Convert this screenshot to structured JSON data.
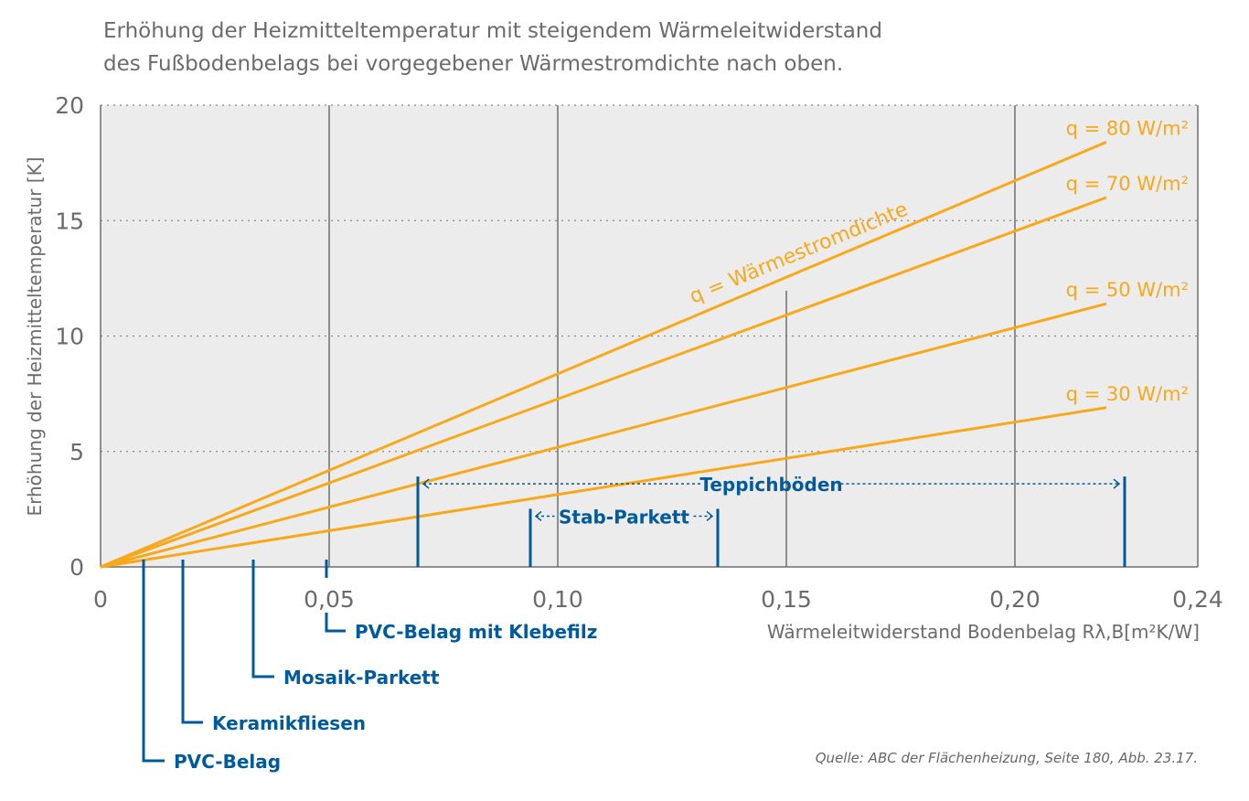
{
  "title": [
    "Erhöhung der Heizmitteltemperatur mit steigendem Wärmeleitwiderstand",
    "des Fußbodenbelags bei vorgegebener Wärmestromdichte nach oben."
  ],
  "source": "Quelle: ABC der Flächenheizung, Seite 180, Abb. 23.17.",
  "colors": {
    "series": "#f7a81b",
    "markers": "#005a9c",
    "plot_bg": "#ececec",
    "axis": "#6b6b6b"
  },
  "chart_data": {
    "type": "line",
    "xlabel": "Wärmeleitwiderstand Bodenbelag Rλ,B[m²K/W]",
    "ylabel": "Erhöhung der Heizmitteltemperatur [K]",
    "xlim": [
      0,
      0.24
    ],
    "ylim": [
      0,
      20
    ],
    "xticks": [
      0,
      0.05,
      0.1,
      0.15,
      0.2,
      0.24
    ],
    "xtick_labels": [
      "0",
      "0,05",
      "0,10",
      "0,15",
      "0,20",
      "0,24"
    ],
    "yticks": [
      0,
      5,
      10,
      15,
      20
    ],
    "ytick_labels": [
      "0",
      "5",
      "10",
      "15",
      "20"
    ],
    "grid": "horizontal dotted, vertical solid",
    "annotation": "q = Wärmestromdichte",
    "series": [
      {
        "name": "q = 80 W/m²",
        "x": [
          0,
          0.22
        ],
        "y": [
          0,
          18.4
        ]
      },
      {
        "name": "q = 70 W/m²",
        "x": [
          0,
          0.22
        ],
        "y": [
          0,
          16.0
        ]
      },
      {
        "name": "q = 50 W/m²",
        "x": [
          0,
          0.22
        ],
        "y": [
          0,
          11.4
        ]
      },
      {
        "name": "q = 30 W/m²",
        "x": [
          0,
          0.22
        ],
        "y": [
          0,
          6.9
        ]
      }
    ],
    "markers": [
      {
        "label": "PVC-Belag",
        "x": 0.0094
      },
      {
        "label": "Keramikfliesen",
        "x": 0.018
      },
      {
        "label": "Mosaik-Parkett",
        "x": 0.0334
      },
      {
        "label": "PVC-Belag mit Klebefilz",
        "x": 0.0494
      }
    ],
    "ranges": [
      {
        "label": "Teppichböden",
        "x": [
          0.0694,
          0.224
        ],
        "y": 3.6
      },
      {
        "label": "Stab-Parkett",
        "x": [
          0.094,
          0.135
        ],
        "y": 2.2
      }
    ]
  }
}
